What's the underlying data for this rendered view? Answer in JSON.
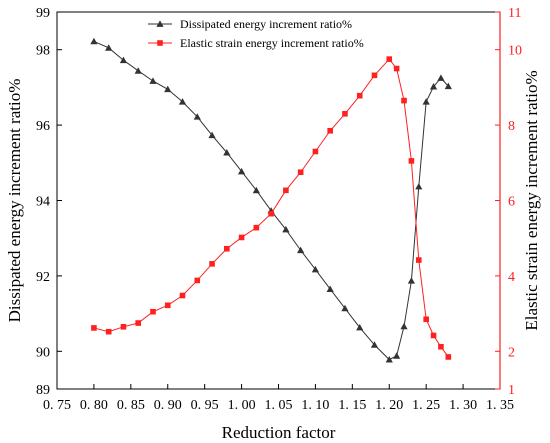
{
  "chart_data": {
    "type": "line",
    "xlabel": "Reduction factor",
    "ylabel_left": "Dissipated energy increment  ratio%",
    "ylabel_right": "Elastic strain energy increment ratio%",
    "xlim": [
      0.75,
      1.35
    ],
    "ylim_left": [
      89,
      99
    ],
    "ylim_right": [
      1,
      11
    ],
    "x_ticks": [
      "0.75",
      "0.80",
      "0.85",
      "0.90",
      "0.95",
      "1.00",
      "1.05",
      "1.10",
      "1.15",
      "1.20",
      "1.25",
      "1.30",
      "1.35"
    ],
    "y_left_ticks": [
      "89",
      "90",
      "92",
      "94",
      "96",
      "98",
      "99"
    ],
    "y_right_ticks": [
      "1",
      "2",
      "4",
      "6",
      "8",
      "10",
      "11"
    ],
    "legend_position": "top-center",
    "grid": false,
    "series": [
      {
        "name": "Dissipated energy increment  ratio%",
        "axis": "left",
        "color": "#333333",
        "marker": "triangle",
        "x": [
          0.8,
          0.82,
          0.84,
          0.86,
          0.88,
          0.9,
          0.92,
          0.94,
          0.96,
          0.98,
          1.0,
          1.02,
          1.04,
          1.06,
          1.08,
          1.1,
          1.12,
          1.14,
          1.16,
          1.18,
          1.2,
          1.21,
          1.22,
          1.23,
          1.24,
          1.25,
          1.26,
          1.27,
          1.28
        ],
        "values": [
          98.22,
          98.05,
          97.72,
          97.44,
          97.17,
          96.95,
          96.62,
          96.22,
          95.73,
          95.27,
          94.77,
          94.27,
          93.73,
          93.23,
          92.68,
          92.17,
          91.65,
          91.14,
          90.63,
          90.17,
          89.78,
          89.88,
          90.66,
          91.87,
          94.37,
          96.62,
          97.02,
          97.25,
          97.03
        ]
      },
      {
        "name": "Elastic strain energy increment ratio%",
        "axis": "right",
        "color": "#ff2020",
        "marker": "square",
        "x": [
          0.8,
          0.82,
          0.84,
          0.86,
          0.88,
          0.9,
          0.92,
          0.94,
          0.96,
          0.98,
          1.0,
          1.02,
          1.04,
          1.06,
          1.08,
          1.1,
          1.12,
          1.14,
          1.16,
          1.18,
          1.2,
          1.21,
          1.22,
          1.23,
          1.24,
          1.25,
          1.26,
          1.27,
          1.28
        ],
        "values": [
          2.62,
          2.52,
          2.65,
          2.75,
          3.05,
          3.22,
          3.48,
          3.88,
          4.32,
          4.72,
          5.02,
          5.28,
          5.65,
          6.27,
          6.75,
          7.3,
          7.85,
          8.3,
          8.78,
          9.32,
          9.75,
          9.5,
          8.65,
          7.05,
          4.42,
          2.85,
          2.42,
          2.12,
          1.85
        ]
      }
    ]
  }
}
